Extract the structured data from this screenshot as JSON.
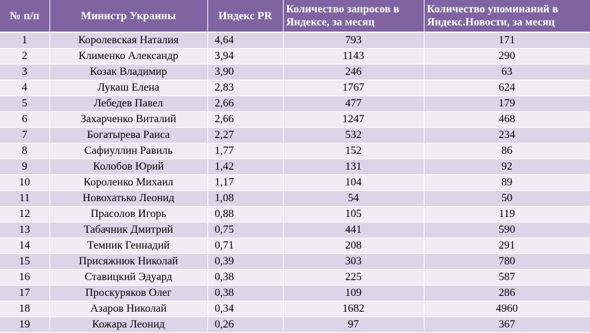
{
  "table": {
    "headers": [
      "№ п/п",
      "Министр Украины",
      "Индекс PR",
      "Количество запросов в Яндексе, за месяц",
      "Количество упоминаний в Яндекс.Новости, за месяц"
    ],
    "rows": [
      {
        "n": "1",
        "name": "Королевская Наталия",
        "pr": "4,64",
        "queries": "793",
        "mentions": "171"
      },
      {
        "n": "2",
        "name": "Клименко Александр",
        "pr": "3,94",
        "queries": "1143",
        "mentions": "290"
      },
      {
        "n": "3",
        "name": "Козак Владимир",
        "pr": "3,90",
        "queries": "246",
        "mentions": "63"
      },
      {
        "n": "4",
        "name": "Лукаш Елена",
        "pr": "2,83",
        "queries": "1767",
        "mentions": "624"
      },
      {
        "n": "5",
        "name": "Лебедев Павел",
        "pr": "2,66",
        "queries": "477",
        "mentions": "179"
      },
      {
        "n": "6",
        "name": "Захарченко Виталий",
        "pr": "2,66",
        "queries": "1247",
        "mentions": "468"
      },
      {
        "n": "7",
        "name": "Богатырева Раиса",
        "pr": "2,27",
        "queries": "532",
        "mentions": "234"
      },
      {
        "n": "8",
        "name": "Сафиуллин Равиль",
        "pr": "1,77",
        "queries": "152",
        "mentions": "86"
      },
      {
        "n": "9",
        "name": "Колобов Юрий",
        "pr": "1,42",
        "queries": "131",
        "mentions": "92"
      },
      {
        "n": "10",
        "name": "Короленко Михаил",
        "pr": "1,17",
        "queries": "104",
        "mentions": "89"
      },
      {
        "n": "11",
        "name": "Новохатько Леонид",
        "pr": "1,08",
        "queries": "54",
        "mentions": "50"
      },
      {
        "n": "12",
        "name": "Прасолов Игорь",
        "pr": "0,88",
        "queries": "105",
        "mentions": "119"
      },
      {
        "n": "13",
        "name": "Табачник Дмитрий",
        "pr": "0,75",
        "queries": "441",
        "mentions": "590"
      },
      {
        "n": "14",
        "name": "Темник Геннадий",
        "pr": "0,71",
        "queries": "208",
        "mentions": "291"
      },
      {
        "n": "15",
        "name": "Присяжнюк Николай",
        "pr": "0,39",
        "queries": "303",
        "mentions": "780"
      },
      {
        "n": "16",
        "name": "Ставицкий Эдуард",
        "pr": "0,38",
        "queries": "225",
        "mentions": "587"
      },
      {
        "n": "17",
        "name": "Проскуряков Олег",
        "pr": "0,38",
        "queries": "109",
        "mentions": "286"
      },
      {
        "n": "18",
        "name": "Азаров Николай",
        "pr": "0,34",
        "queries": "1682",
        "mentions": "4960"
      },
      {
        "n": "19",
        "name": "Кожара Леонид",
        "pr": "0,26",
        "queries": "97",
        "mentions": "367"
      }
    ]
  },
  "colors": {
    "header_bg": "#8064a2",
    "row_odd": "#dcd5e7",
    "row_even": "#efecf4"
  }
}
